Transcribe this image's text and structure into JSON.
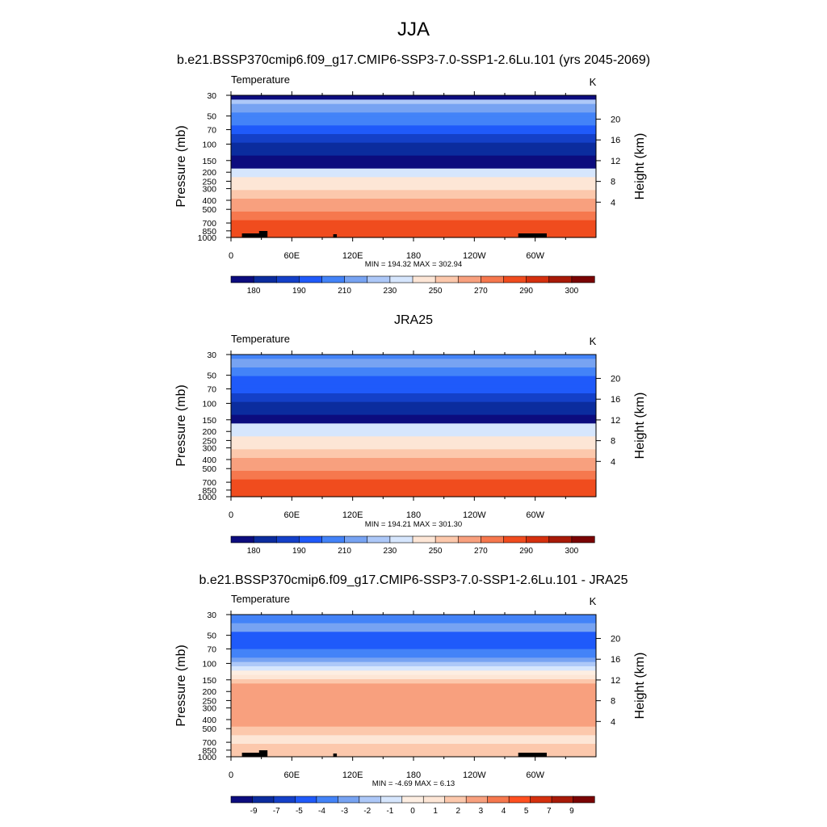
{
  "figure": {
    "title": "JJA"
  },
  "chart_data": [
    {
      "type": "heatmap",
      "title": "b.e21.BSSP370cmip6.f09_g17.CMIP6-SSP3-7.0-SSP1-2.6Lu.101 (yrs 2045-2069)",
      "left_label": "Temperature",
      "units": "K",
      "ylabel": "Pressure (mb)",
      "ylabel_right": "Height (km)",
      "x_ticks": [
        "0",
        "60E",
        "120E",
        "180",
        "120W",
        "60W"
      ],
      "y_ticks": [
        "30",
        "50",
        "70",
        "100",
        "150",
        "200",
        "250",
        "300",
        "400",
        "500",
        "700",
        "850",
        "1000"
      ],
      "y_ticks_right": [
        "20",
        "16",
        "12",
        "8",
        "4"
      ],
      "stats": "MIN = 194.32  MAX = 302.94",
      "colorbar_labels": [
        "180",
        "190",
        "210",
        "230",
        "250",
        "270",
        "290",
        "300"
      ],
      "band_levels": [
        0,
        6,
        5,
        5,
        4,
        4,
        4,
        3,
        3,
        2,
        2,
        1,
        1,
        1,
        0,
        0,
        0,
        7,
        7,
        8,
        8,
        8,
        9,
        9,
        10,
        10,
        10,
        11,
        11,
        12,
        12,
        12,
        12
      ]
    },
    {
      "type": "heatmap",
      "title": "JRA25",
      "left_label": "Temperature",
      "units": "K",
      "ylabel": "Pressure (mb)",
      "ylabel_right": "Height (km)",
      "x_ticks": [
        "0",
        "60E",
        "120E",
        "180",
        "120W",
        "60W"
      ],
      "y_ticks": [
        "30",
        "50",
        "70",
        "100",
        "150",
        "200",
        "250",
        "300",
        "400",
        "500",
        "700",
        "850",
        "1000"
      ],
      "y_ticks_right": [
        "20",
        "16",
        "12",
        "8",
        "4"
      ],
      "stats": "MIN = 194.21  MAX = 301.30",
      "colorbar_labels": [
        "180",
        "190",
        "210",
        "230",
        "250",
        "270",
        "290",
        "300"
      ],
      "band_levels": [
        4,
        5,
        5,
        4,
        4,
        3,
        3,
        3,
        3,
        2,
        2,
        1,
        1,
        1,
        0,
        0,
        7,
        7,
        7,
        8,
        8,
        8,
        9,
        9,
        10,
        10,
        10,
        11,
        11,
        12,
        12,
        12,
        12
      ]
    },
    {
      "type": "heatmap",
      "title": "b.e21.BSSP370cmip6.f09_g17.CMIP6-SSP3-7.0-SSP1-2.6Lu.101 - JRA25",
      "left_label": "Temperature",
      "units": "K",
      "ylabel": "Pressure (mb)",
      "ylabel_right": "Height (km)",
      "x_ticks": [
        "0",
        "60E",
        "120E",
        "180",
        "120W",
        "60W"
      ],
      "y_ticks": [
        "30",
        "50",
        "70",
        "100",
        "150",
        "200",
        "250",
        "300",
        "400",
        "500",
        "700",
        "850",
        "1000"
      ],
      "y_ticks_right": [
        "20",
        "16",
        "12",
        "8",
        "4"
      ],
      "stats": "MIN =  -4.69  MAX =   6.13",
      "colorbar_labels": [
        "-9",
        "-7",
        "-5",
        "-4",
        "-3",
        "-2",
        "-1",
        "0",
        "1",
        "2",
        "3",
        "4",
        "5",
        "7",
        "9"
      ],
      "band_levels": [
        4,
        4,
        5,
        5,
        3,
        3,
        3,
        3,
        4,
        4,
        5,
        6,
        7,
        8,
        9,
        10,
        11,
        11,
        11,
        11,
        11,
        11,
        11,
        11,
        11,
        11,
        10,
        10,
        9,
        9,
        10,
        10,
        10
      ]
    }
  ],
  "colors": {
    "temperature_scale": [
      "#0c0c7e",
      "#0b2c9e",
      "#1440c8",
      "#1f5afa",
      "#4383f8",
      "#77a3f2",
      "#adc8f8",
      "#d6e6fd",
      "#fde6d6",
      "#fcc8ac",
      "#f8a07e",
      "#f6784e",
      "#f04c1e",
      "#d5300e",
      "#a81a08",
      "#7a0404"
    ],
    "difference_scale": [
      "#0c0c7e",
      "#0b2c9e",
      "#1440c8",
      "#1f5afa",
      "#4383f8",
      "#77a3f2",
      "#adc8f8",
      "#d6e6fd",
      "#fdeee2",
      "#fde6d6",
      "#fcc8ac",
      "#f8a07e",
      "#f6784e",
      "#ff5020",
      "#d5300e",
      "#a81a08",
      "#7a0404"
    ],
    "topography": "#000000"
  }
}
